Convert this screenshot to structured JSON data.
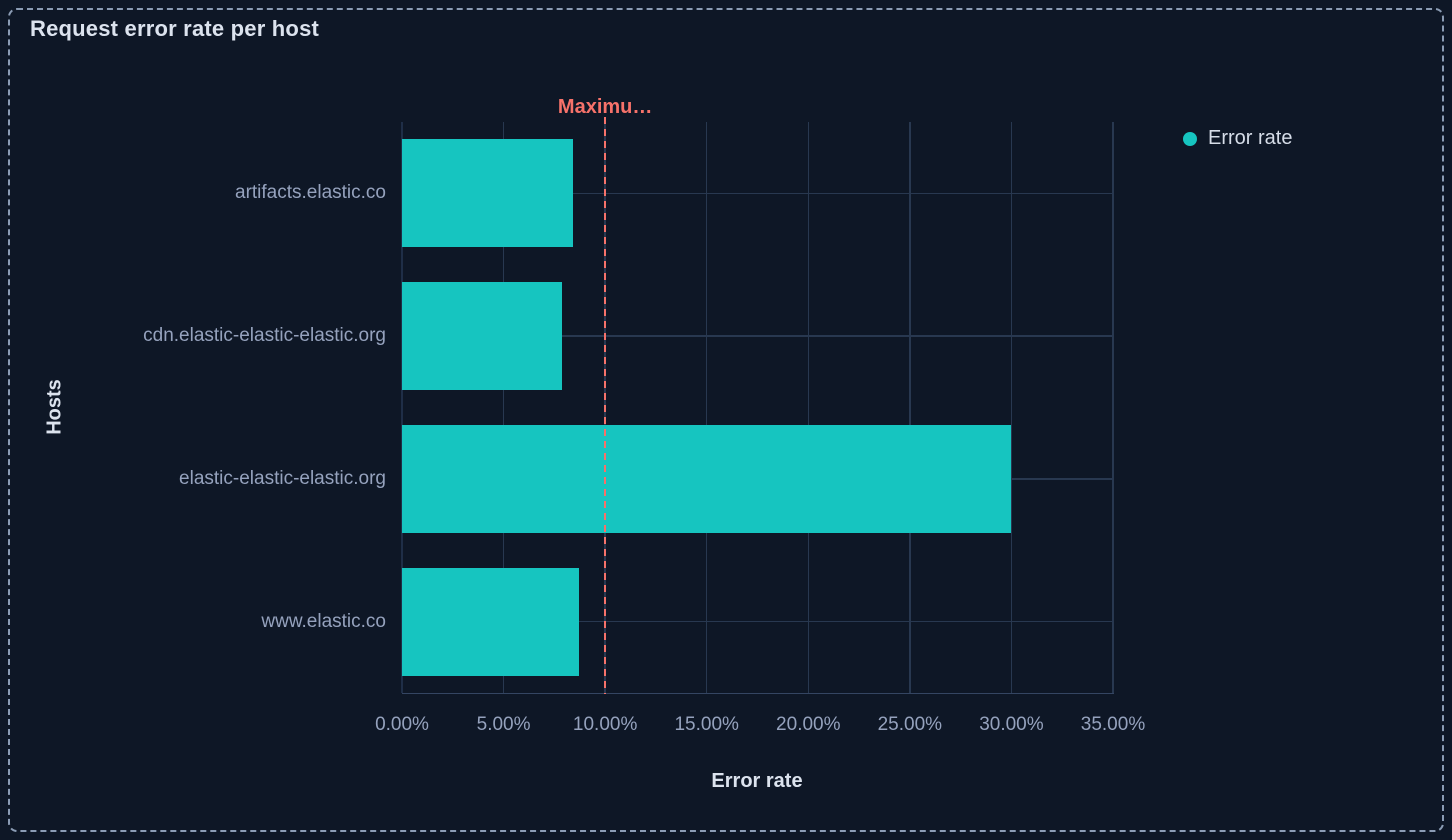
{
  "panel": {
    "title": "Request error rate per host"
  },
  "legend": {
    "items": [
      {
        "label": "Error rate",
        "color": "#16c5c0"
      }
    ]
  },
  "colors": {
    "background": "#0e1726",
    "bar": "#16c5c0",
    "threshold": "#f6726a",
    "gridline": "#283850",
    "axis_text": "#95a2bd",
    "title_text": "#dce3ee",
    "panel_border": "#8b9cb4"
  },
  "chart_data": {
    "type": "bar",
    "orientation": "horizontal",
    "title": "Request error rate per host",
    "xlabel": "Error rate",
    "ylabel": "Hosts",
    "categories": [
      "artifacts.elastic.co",
      "cdn.elastic-elastic-elastic.org",
      "elastic-elastic-elastic.org",
      "www.elastic.co"
    ],
    "series": [
      {
        "name": "Error rate",
        "color": "#16c5c0",
        "values": [
          8.4,
          7.9,
          30.0,
          8.7
        ]
      }
    ],
    "value_unit": "%",
    "xlim": [
      0,
      35
    ],
    "xticks": [
      0,
      5,
      10,
      15,
      20,
      25,
      30,
      35
    ],
    "xtick_labels": [
      "0.00%",
      "5.00%",
      "10.00%",
      "15.00%",
      "20.00%",
      "25.00%",
      "30.00%",
      "35.00%"
    ],
    "grid": true,
    "legend_position": "top-right",
    "annotation": {
      "label": "Maximu…",
      "value": 10,
      "color": "#f6726a",
      "style": "dashed"
    }
  }
}
